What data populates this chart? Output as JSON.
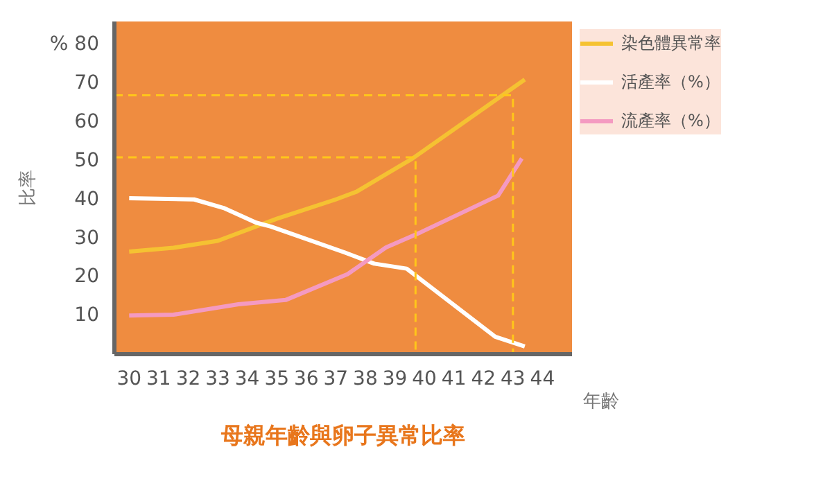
{
  "chart_data": {
    "type": "line",
    "title": "母親年齡與卵子異常比率",
    "xlabel": "年齡",
    "ylabel": "比率",
    "xlim": [
      29.5,
      45
    ],
    "xticks": [
      30,
      31,
      32,
      33,
      34,
      35,
      36,
      37,
      38,
      39,
      40,
      41,
      42,
      43,
      44
    ],
    "ylim": [
      0,
      86
    ],
    "yticks": [
      10,
      20,
      30,
      40,
      50,
      60,
      70,
      {
        "value": 80,
        "label": "% 80"
      }
    ],
    "grid": false,
    "legend": "right",
    "marker": "none",
    "line_style": "solid",
    "series": [
      {
        "name": "染色體異常率",
        "color": "#f5c232",
        "x": [
          30,
          31.5,
          33,
          35,
          37,
          37.7,
          39.6,
          43.4
        ],
        "values": [
          26.5,
          27.5,
          29.3,
          35,
          40,
          42,
          50.6,
          71
        ]
      },
      {
        "name": "活產率（%）",
        "color": "#ffffff",
        "x": [
          30,
          32.2,
          33.2,
          34.3,
          34.8,
          37.3,
          38.3,
          39.4,
          42.4,
          43.4
        ],
        "values": [
          40.3,
          40,
          37.8,
          34,
          33,
          26.3,
          23.4,
          22.1,
          4.5,
          2
        ]
      },
      {
        "name": "流產率（%）",
        "color": "#f49ac1",
        "x": [
          30,
          31.5,
          33.7,
          35.3,
          37.4,
          38.7,
          39.9,
          42.5,
          43.3
        ],
        "values": [
          10,
          10.2,
          12.9,
          14,
          20.7,
          27.6,
          31.6,
          41,
          50.6
        ]
      },
      {
        "type": "line",
        "color": "#ffc61a",
        "line_style": "dashed",
        "x": [
          29.5,
          39.7,
          39.7
        ],
        "values": [
          50.9,
          50.9,
          0
        ]
      },
      {
        "type": "line",
        "color": "#ffc61a",
        "line_style": "dashed",
        "x": [
          29.5,
          43,
          43
        ],
        "values": [
          66.9,
          66.9,
          0
        ]
      }
    ]
  }
}
